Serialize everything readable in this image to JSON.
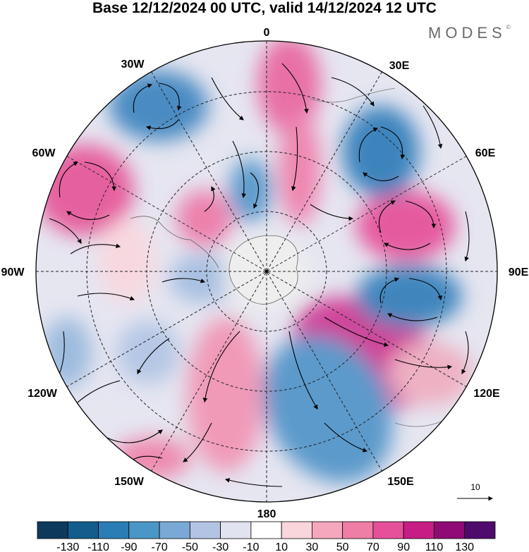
{
  "title": "Base 12/12/2024 00 UTC, valid 14/12/2024 12 UTC",
  "brand": "MODES",
  "brand_mark": "©",
  "map": {
    "longitude_labels": [
      "0",
      "30E",
      "60E",
      "90E",
      "120E",
      "150E",
      "180",
      "150W",
      "120W",
      "90W",
      "60W",
      "30W"
    ],
    "projection": "south-polar-stereographic"
  },
  "reference_vector": {
    "label": "10"
  },
  "colorbar": {
    "colors": [
      "#0d3a5c",
      "#125d8c",
      "#2a7db5",
      "#4a97c7",
      "#7aa9d6",
      "#b3c3e3",
      "#e2e3f0",
      "#ffffff",
      "#f9d6dc",
      "#f4a7bd",
      "#ee7ea6",
      "#e6509a",
      "#c71e85",
      "#8f0a74",
      "#4f0a6e"
    ],
    "tick_labels": [
      "-130",
      "-110",
      "-90",
      "-70",
      "-50",
      "-30",
      "-10",
      "10",
      "30",
      "50",
      "70",
      "90",
      "110",
      "130"
    ]
  }
}
